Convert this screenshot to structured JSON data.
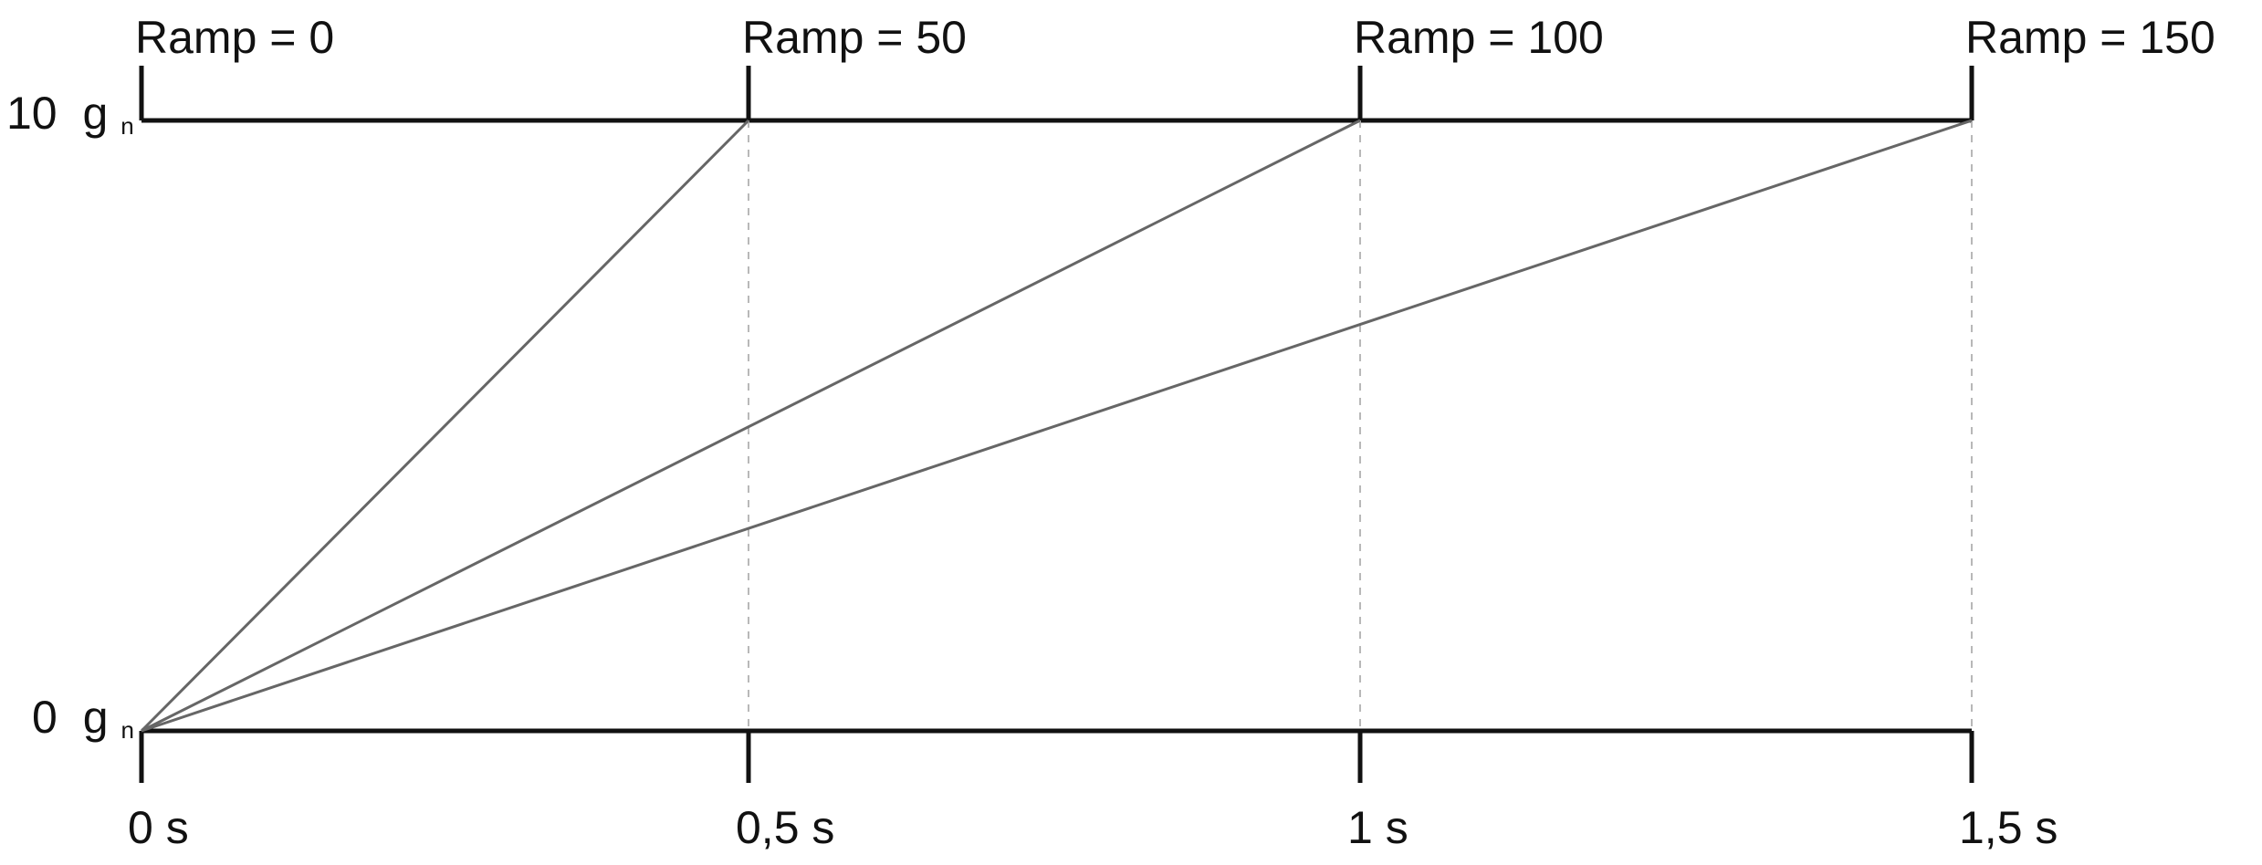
{
  "diagram": {
    "y_labels": [
      {
        "value": "10",
        "unit_main": "g",
        "unit_sub": "n"
      },
      {
        "value": "0",
        "unit_main": "g",
        "unit_sub": "n"
      }
    ],
    "ramps": [
      {
        "label": "Ramp = 0",
        "end_time_s": 0
      },
      {
        "label": "Ramp = 50",
        "end_time_s": 0.5
      },
      {
        "label": "Ramp = 100",
        "end_time_s": 1
      },
      {
        "label": "Ramp = 150",
        "end_time_s": 1.5
      }
    ],
    "x_ticks": [
      {
        "label": "0 s",
        "value_s": 0
      },
      {
        "label": "0,5 s",
        "value_s": 0.5
      },
      {
        "label": "1 s",
        "value_s": 1
      },
      {
        "label": "1,5 s",
        "value_s": 1.5
      }
    ],
    "y_range_g": [
      0,
      10
    ],
    "x_range_s": [
      0,
      1.5
    ],
    "colors": {
      "axis": "#111111",
      "ramp_line": "#666666",
      "guide_line": "#b8b8b8"
    }
  }
}
